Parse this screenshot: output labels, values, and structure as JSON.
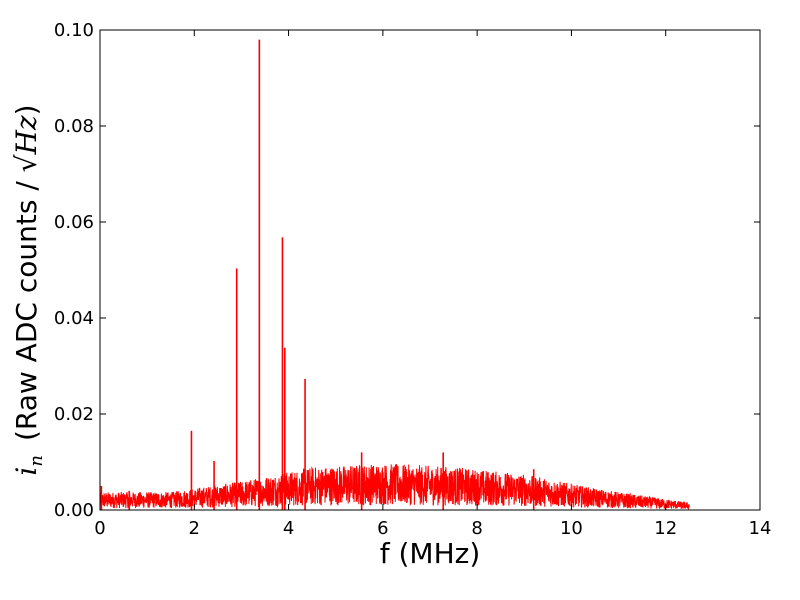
{
  "chart_data": {
    "type": "line",
    "xlabel": "f (MHz)",
    "ylabel": {
      "symbol": "i",
      "subscript": "n",
      "text": "(Raw ADC counts / ",
      "sqrt_symbol": "√",
      "unit": "Hz",
      "close": ")"
    },
    "xlim": [
      0,
      14
    ],
    "ylim": [
      0,
      0.1
    ],
    "xticks": [
      0,
      2,
      4,
      6,
      8,
      10,
      12,
      14
    ],
    "xtick_labels": [
      "0",
      "2",
      "4",
      "6",
      "8",
      "10",
      "12",
      "14"
    ],
    "yticks": [
      0,
      0.02,
      0.04,
      0.06,
      0.08,
      0.1
    ],
    "ytick_labels": [
      "0.00",
      "0.02",
      "0.04",
      "0.06",
      "0.08",
      "0.10"
    ],
    "grid": false,
    "line_color": "#ff0000",
    "x_range": [
      0,
      12.5
    ],
    "noise_envelope": [
      {
        "x": 0.0,
        "y": 0.0025
      },
      {
        "x": 1.5,
        "y": 0.0025
      },
      {
        "x": 3.0,
        "y": 0.004
      },
      {
        "x": 4.5,
        "y": 0.006
      },
      {
        "x": 6.0,
        "y": 0.0065
      },
      {
        "x": 7.5,
        "y": 0.006
      },
      {
        "x": 9.0,
        "y": 0.005
      },
      {
        "x": 10.5,
        "y": 0.003
      },
      {
        "x": 12.0,
        "y": 0.0015
      },
      {
        "x": 12.5,
        "y": 0.001
      }
    ],
    "peaks": [
      {
        "x": 0.03,
        "y": 0.005
      },
      {
        "x": 0.62,
        "y": 0.004
      },
      {
        "x": 1.94,
        "y": 0.0165
      },
      {
        "x": 2.42,
        "y": 0.0102
      },
      {
        "x": 2.9,
        "y": 0.0503
      },
      {
        "x": 3.38,
        "y": 0.098
      },
      {
        "x": 3.87,
        "y": 0.0568
      },
      {
        "x": 3.92,
        "y": 0.0338
      },
      {
        "x": 4.35,
        "y": 0.0273
      },
      {
        "x": 5.55,
        "y": 0.012
      },
      {
        "x": 7.28,
        "y": 0.012
      },
      {
        "x": 9.2,
        "y": 0.0085
      }
    ]
  }
}
